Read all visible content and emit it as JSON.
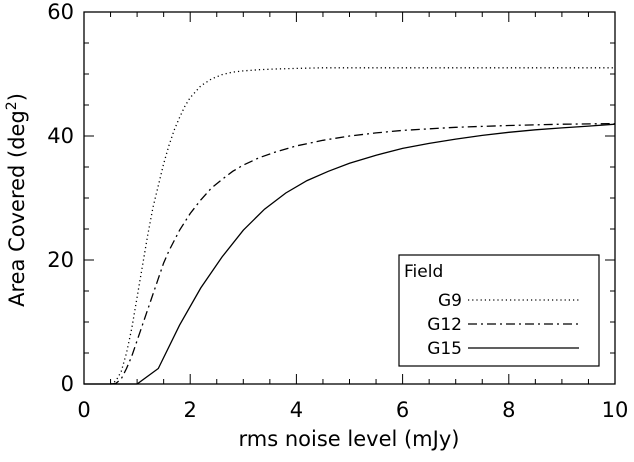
{
  "chart_data": {
    "type": "line",
    "title": "",
    "xlabel": "rms noise level (mJy)",
    "ylabel_main": "Area Covered (deg",
    "ylabel_sup": "2",
    "ylabel_close": ")",
    "xlim": [
      0,
      10
    ],
    "ylim": [
      0,
      60
    ],
    "xticks": [
      0,
      2,
      4,
      6,
      8,
      10
    ],
    "yticks": [
      0,
      20,
      40,
      60
    ],
    "grid": false,
    "legend": {
      "title": "Field",
      "placement": "bottom-right"
    },
    "series": [
      {
        "name": "G9",
        "dash": "dotted",
        "x": [
          0.5,
          0.6,
          0.7,
          0.8,
          0.9,
          1.0,
          1.1,
          1.2,
          1.3,
          1.4,
          1.5,
          1.6,
          1.7,
          1.8,
          1.9,
          2.0,
          2.2,
          2.4,
          2.6,
          2.8,
          3.0,
          3.3,
          3.6,
          4.0,
          4.5,
          5.0,
          6.0,
          7.0,
          8.0,
          9.0,
          10.0
        ],
        "y": [
          0,
          0.5,
          2,
          5,
          9,
          14,
          19,
          24,
          28.5,
          32,
          35.5,
          38.5,
          41,
          43,
          44.8,
          46.2,
          48.1,
          49.2,
          49.9,
          50.3,
          50.5,
          50.7,
          50.8,
          50.9,
          51.0,
          51.0,
          51.0,
          51.0,
          51.0,
          51.0,
          51.0
        ]
      },
      {
        "name": "G12",
        "dash": "dash-dot",
        "x": [
          0.5,
          0.6,
          0.7,
          0.8,
          0.9,
          1.0,
          1.1,
          1.2,
          1.3,
          1.4,
          1.5,
          1.6,
          1.8,
          2.0,
          2.2,
          2.4,
          2.6,
          2.8,
          3.0,
          3.3,
          3.6,
          4.0,
          4.5,
          5.0,
          5.5,
          6.0,
          7.0,
          8.0,
          9.0,
          10.0
        ],
        "y": [
          0,
          0.1,
          0.8,
          2.5,
          4.5,
          7,
          9.5,
          12,
          14.5,
          17,
          19.5,
          21.5,
          24.8,
          27.5,
          29.7,
          31.6,
          33.0,
          34.3,
          35.3,
          36.5,
          37.4,
          38.4,
          39.3,
          40.0,
          40.5,
          40.9,
          41.4,
          41.7,
          41.9,
          42.0
        ]
      },
      {
        "name": "G15",
        "dash": "solid",
        "x": [
          0.0,
          1.0,
          1.4,
          1.8,
          2.2,
          2.6,
          3.0,
          3.4,
          3.8,
          4.2,
          4.6,
          5.0,
          5.5,
          6.0,
          6.5,
          7.0,
          7.5,
          8.0,
          8.5,
          9.0,
          9.5,
          10.0
        ],
        "y": [
          0,
          0,
          2.5,
          9.5,
          15.5,
          20.5,
          24.8,
          28.2,
          30.8,
          32.8,
          34.3,
          35.6,
          36.9,
          38.0,
          38.8,
          39.5,
          40.1,
          40.6,
          41.0,
          41.3,
          41.6,
          41.9
        ]
      }
    ]
  }
}
